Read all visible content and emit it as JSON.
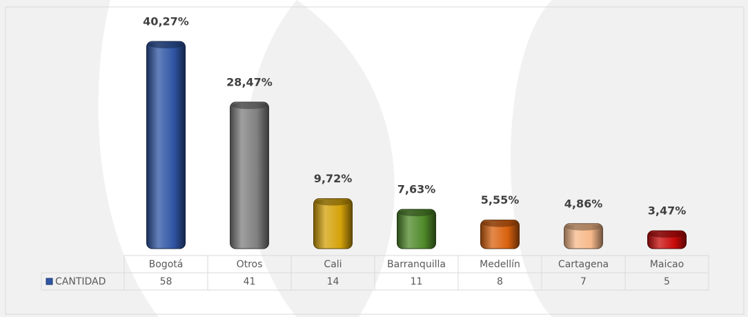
{
  "chart_data": {
    "type": "bar",
    "categories": [
      "Bogotá",
      "Otros",
      "Cali",
      "Barranquilla",
      "Medellín",
      "Cartagena",
      "Maicao"
    ],
    "series": [
      {
        "name": "CANTIDAD",
        "values": [
          58,
          41,
          14,
          11,
          8,
          7,
          5
        ],
        "colors": [
          "#2f55a4",
          "#7f7f7f",
          "#d4a20a",
          "#4f8a2a",
          "#d9620f",
          "#f7b98a",
          "#c80a0a"
        ]
      }
    ],
    "percentages": {
      "values": [
        40.27,
        28.47,
        9.72,
        7.63,
        5.55,
        4.86,
        3.47
      ],
      "value_labels": [
        "40,27%",
        "28,47%",
        "9,72%",
        "7,63%",
        "5,55%",
        "4,86%",
        "3,47%"
      ]
    }
  }
}
